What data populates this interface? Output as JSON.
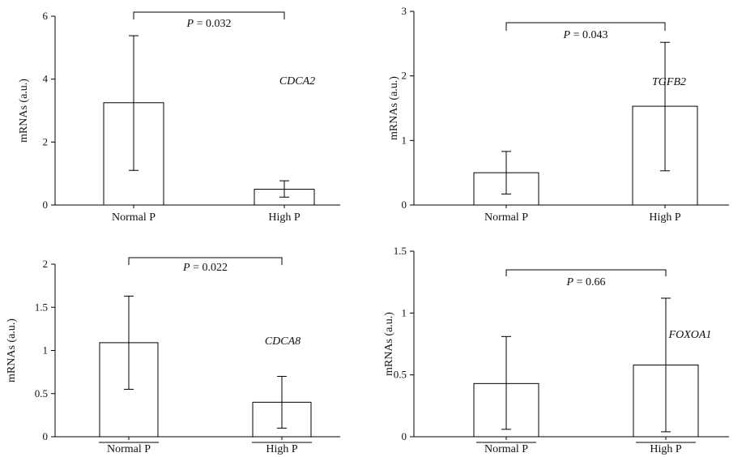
{
  "chart_data": [
    {
      "type": "bar",
      "gene_label": "CDCA2",
      "ylabel": "mRNAs (a.u.)",
      "categories": [
        "Normal P",
        "High P"
      ],
      "values": [
        3.25,
        0.5
      ],
      "error_low": [
        1.1,
        0.25
      ],
      "error_high": [
        5.38,
        0.77
      ],
      "ylim": [
        0,
        6
      ],
      "yticks": [
        0,
        2,
        4,
        6
      ],
      "p_symbol": "P",
      "p_text": " = 0.032",
      "category_underline": false
    },
    {
      "type": "bar",
      "gene_label": "TGFB2",
      "ylabel": "mRNAs (a.u.)",
      "categories": [
        "Normal P",
        "High P"
      ],
      "values": [
        0.5,
        1.53
      ],
      "error_low": [
        0.17,
        0.53
      ],
      "error_high": [
        0.83,
        2.52
      ],
      "ylim": [
        0,
        3
      ],
      "yticks": [
        0,
        1,
        2,
        3
      ],
      "p_symbol": "P",
      "p_text": " = 0.043",
      "category_underline": false
    },
    {
      "type": "bar",
      "gene_label": "CDCA8",
      "ylabel": "mRNAs (a.u.)",
      "categories": [
        "Normal P",
        "High P"
      ],
      "values": [
        1.09,
        0.4
      ],
      "error_low": [
        0.55,
        0.1
      ],
      "error_high": [
        1.63,
        0.7
      ],
      "ylim": [
        0,
        2
      ],
      "yticks": [
        0,
        0.5,
        1,
        1.5,
        2
      ],
      "p_symbol": "P",
      "p_text": " = 0.022",
      "category_underline": true
    },
    {
      "type": "bar",
      "gene_label": "FOXOA1",
      "ylabel": "mRNAs (a.u.)",
      "categories": [
        "Normal P",
        "High P"
      ],
      "values": [
        0.43,
        0.58
      ],
      "error_low": [
        0.06,
        0.04
      ],
      "error_high": [
        0.81,
        1.12
      ],
      "ylim": [
        0,
        1.5
      ],
      "yticks": [
        0,
        0.5,
        1,
        1.5
      ],
      "p_symbol": "P",
      "p_text": " = 0.66",
      "category_underline": true
    }
  ]
}
